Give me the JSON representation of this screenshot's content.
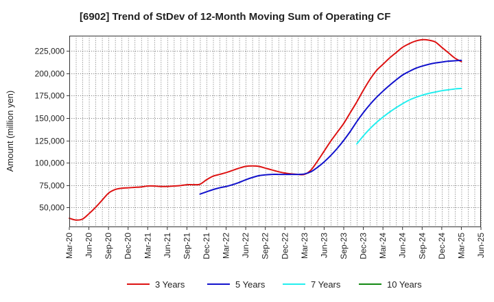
{
  "chart_data": {
    "type": "line",
    "title": "[6902]  Trend of StDev of 12-Month Moving Sum of Operating CF",
    "ylabel": "Amount (million yen)",
    "xlabel": "",
    "ylim": [
      28000,
      242000
    ],
    "yticks": [
      50000,
      75000,
      100000,
      125000,
      150000,
      175000,
      200000,
      225000
    ],
    "ytick_labels": [
      "50,000",
      "75,000",
      "100,000",
      "125,000",
      "150,000",
      "175,000",
      "200,000",
      "225,000"
    ],
    "x_start": "2020-03",
    "x_end": "2025-06",
    "xtick_labels": [
      "Mar-20",
      "Jun-20",
      "Sep-20",
      "Dec-20",
      "Mar-21",
      "Jun-21",
      "Sep-21",
      "Dec-21",
      "Mar-22",
      "Jun-22",
      "Sep-22",
      "Dec-22",
      "Mar-23",
      "Jun-23",
      "Sep-23",
      "Dec-23",
      "Mar-24",
      "Jun-24",
      "Sep-24",
      "Dec-24",
      "Mar-25",
      "Jun-25"
    ],
    "grid": true,
    "legend_position": "bottom",
    "series": [
      {
        "name": "3 Years",
        "color": "#dd1111",
        "x": [
          "2020-03",
          "2020-04",
          "2020-05",
          "2020-06",
          "2020-07",
          "2020-08",
          "2020-09",
          "2020-10",
          "2020-11",
          "2020-12",
          "2021-01",
          "2021-02",
          "2021-03",
          "2021-04",
          "2021-05",
          "2021-06",
          "2021-07",
          "2021-08",
          "2021-09",
          "2021-10",
          "2021-11",
          "2021-12",
          "2022-01",
          "2022-02",
          "2022-03",
          "2022-04",
          "2022-05",
          "2022-06",
          "2022-07",
          "2022-08",
          "2022-09",
          "2022-10",
          "2022-11",
          "2022-12",
          "2023-01",
          "2023-02",
          "2023-03",
          "2023-04",
          "2023-05",
          "2023-06",
          "2023-07",
          "2023-08",
          "2023-09",
          "2023-10",
          "2023-11",
          "2023-12",
          "2024-01",
          "2024-02",
          "2024-03",
          "2024-04",
          "2024-05",
          "2024-06",
          "2024-07",
          "2024-08",
          "2024-09",
          "2024-10",
          "2024-11",
          "2024-12",
          "2025-01",
          "2025-02",
          "2025-03"
        ],
        "values": [
          38000,
          36000,
          37000,
          43000,
          50000,
          58000,
          66000,
          70000,
          71500,
          72000,
          72500,
          73000,
          74000,
          74000,
          73500,
          73500,
          74000,
          74500,
          75500,
          75500,
          76000,
          81000,
          85000,
          87000,
          89000,
          91500,
          94000,
          96000,
          96500,
          96000,
          94000,
          92000,
          90000,
          88500,
          87500,
          87000,
          87000,
          92000,
          102000,
          113000,
          124000,
          134000,
          144000,
          156000,
          168000,
          181000,
          193000,
          203000,
          210000,
          217000,
          223000,
          229000,
          233000,
          236000,
          237500,
          237000,
          235000,
          229000,
          223000,
          217000,
          213000
        ]
      },
      {
        "name": "5 Years",
        "color": "#1111cc",
        "x": [
          "2021-11",
          "2021-12",
          "2022-01",
          "2022-02",
          "2022-03",
          "2022-04",
          "2022-05",
          "2022-06",
          "2022-07",
          "2022-08",
          "2022-09",
          "2022-10",
          "2022-11",
          "2022-12",
          "2023-01",
          "2023-02",
          "2023-03",
          "2023-04",
          "2023-05",
          "2023-06",
          "2023-07",
          "2023-08",
          "2023-09",
          "2023-10",
          "2023-11",
          "2023-12",
          "2024-01",
          "2024-02",
          "2024-03",
          "2024-04",
          "2024-05",
          "2024-06",
          "2024-07",
          "2024-08",
          "2024-09",
          "2024-10",
          "2024-11",
          "2024-12",
          "2025-01",
          "2025-02",
          "2025-03"
        ],
        "values": [
          65000,
          67500,
          70000,
          72000,
          73500,
          75500,
          78000,
          81000,
          83500,
          85500,
          86500,
          87000,
          87000,
          87000,
          87000,
          87000,
          87500,
          90000,
          95000,
          101000,
          108000,
          116000,
          125000,
          135000,
          146000,
          156000,
          165000,
          173000,
          180000,
          186500,
          192500,
          198000,
          202000,
          205500,
          208000,
          210000,
          211500,
          212500,
          213500,
          214000,
          214500
        ]
      },
      {
        "name": "7 Years",
        "color": "#22eeee",
        "x": [
          "2023-11",
          "2023-12",
          "2024-01",
          "2024-02",
          "2024-03",
          "2024-04",
          "2024-05",
          "2024-06",
          "2024-07",
          "2024-08",
          "2024-09",
          "2024-10",
          "2024-11",
          "2024-12",
          "2025-01",
          "2025-02",
          "2025-03"
        ],
        "values": [
          121000,
          130000,
          138000,
          145000,
          151000,
          156500,
          161500,
          166000,
          170000,
          173000,
          175500,
          177500,
          179000,
          180500,
          181500,
          182500,
          183000
        ]
      },
      {
        "name": "10 Years",
        "color": "#118811",
        "x": [],
        "values": []
      }
    ]
  }
}
